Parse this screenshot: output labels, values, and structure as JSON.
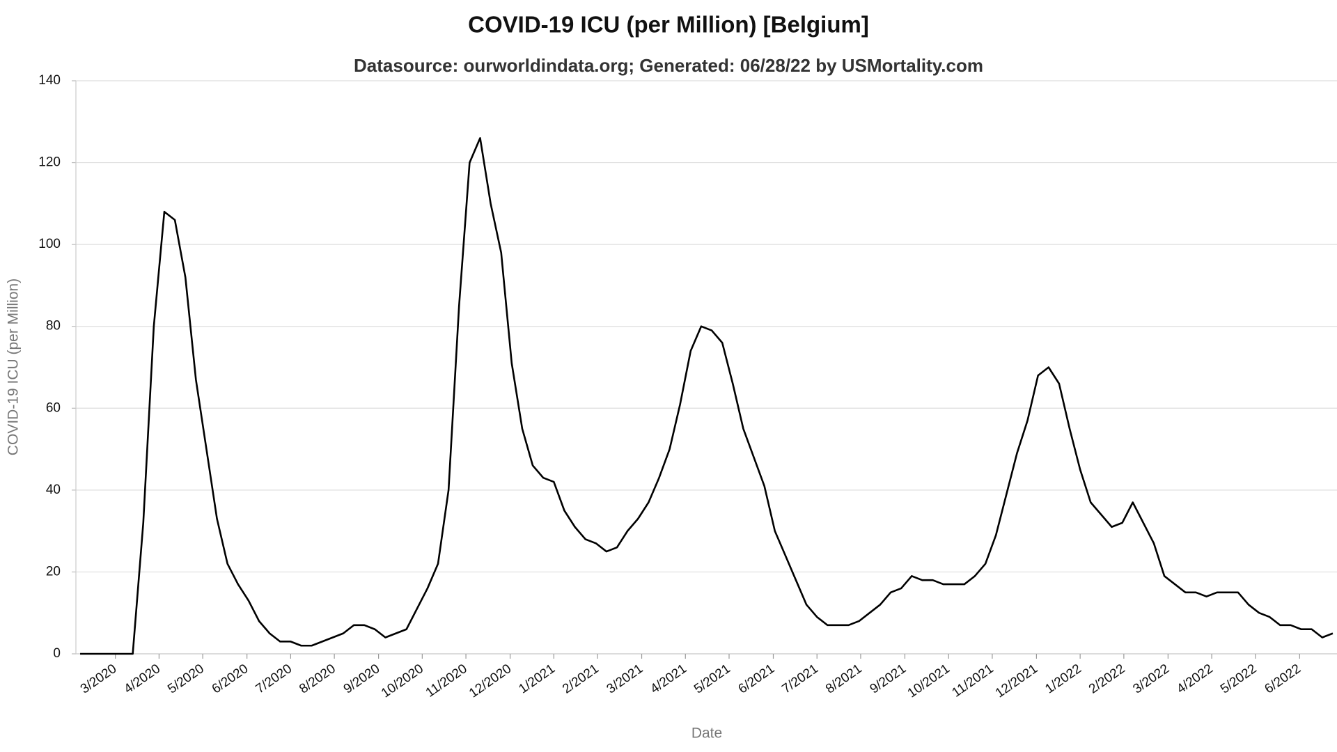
{
  "chart_data": {
    "type": "line",
    "title": "COVID-19 ICU (per Million) [Belgium]",
    "subtitle": "Datasource: ourworldindata.org; Generated: 06/28/22 by USMortality.com",
    "x_label": "Date",
    "y_label": "COVID-19 ICU (per Million)",
    "color": "#000000",
    "grid": true,
    "x": [
      2020.1,
      2020.12,
      2020.14,
      2020.16,
      2020.18,
      2020.2,
      2020.22,
      2020.24,
      2020.26,
      2020.28,
      2020.3,
      2020.32,
      2020.34,
      2020.36,
      2020.38,
      2020.4,
      2020.42,
      2020.44,
      2020.46,
      2020.48,
      2020.5,
      2020.52,
      2020.54,
      2020.56,
      2020.58,
      2020.6,
      2020.62,
      2020.64,
      2020.66,
      2020.68,
      2020.7,
      2020.72,
      2020.74,
      2020.76,
      2020.78,
      2020.8,
      2020.82,
      2020.84,
      2020.86,
      2020.88,
      2020.9,
      2020.92,
      2020.94,
      2020.96,
      2020.98,
      2021.0,
      2021.02,
      2021.04,
      2021.06,
      2021.08,
      2021.1,
      2021.12,
      2021.14,
      2021.16,
      2021.18,
      2021.2,
      2021.22,
      2021.24,
      2021.26,
      2021.28,
      2021.3,
      2021.32,
      2021.34,
      2021.36,
      2021.38,
      2021.4,
      2021.42,
      2021.44,
      2021.46,
      2021.48,
      2021.5,
      2021.52,
      2021.54,
      2021.56,
      2021.58,
      2021.6,
      2021.62,
      2021.64,
      2021.66,
      2021.68,
      2021.7,
      2021.72,
      2021.74,
      2021.76,
      2021.78,
      2021.8,
      2021.82,
      2021.84,
      2021.86,
      2021.88,
      2021.9,
      2021.92,
      2021.94,
      2021.96,
      2021.98,
      2022.0,
      2022.02,
      2022.04,
      2022.06,
      2022.08,
      2022.1,
      2022.12,
      2022.14,
      2022.16,
      2022.18,
      2022.2,
      2022.22,
      2022.24,
      2022.26,
      2022.28,
      2022.3,
      2022.32,
      2022.34,
      2022.36,
      2022.38,
      2022.4,
      2022.42,
      2022.44,
      2022.46,
      2022.48
    ],
    "values": [
      0,
      0,
      0,
      0,
      0,
      0,
      32,
      80,
      108,
      106,
      92,
      67,
      50,
      33,
      22,
      17,
      13,
      8,
      5,
      3,
      3,
      2,
      2,
      3,
      4,
      5,
      7,
      7,
      6,
      4,
      5,
      6,
      11,
      16,
      22,
      40,
      85,
      120,
      126,
      110,
      98,
      71,
      55,
      46,
      43,
      42,
      35,
      31,
      28,
      27,
      25,
      26,
      30,
      33,
      37,
      43,
      50,
      61,
      74,
      80,
      79,
      76,
      66,
      55,
      48,
      41,
      30,
      24,
      18,
      12,
      9,
      7,
      7,
      7,
      8,
      10,
      12,
      15,
      16,
      19,
      18,
      18,
      17,
      17,
      17,
      19,
      22,
      29,
      39,
      49,
      57,
      68,
      70,
      66,
      55,
      45,
      37,
      34,
      31,
      32,
      37,
      32,
      27,
      19,
      17,
      15,
      15,
      14,
      15,
      15,
      15,
      12,
      10,
      9,
      7,
      7,
      6,
      6,
      4,
      5
    ],
    "xlim": [
      2020.092,
      2022.488
    ],
    "ylim": [
      0,
      140
    ],
    "yticks": [
      0,
      20,
      40,
      60,
      80,
      100,
      120,
      140
    ],
    "xticks": [
      {
        "value": 2020.167,
        "label": "3/2020"
      },
      {
        "value": 2020.25,
        "label": "4/2020"
      },
      {
        "value": 2020.333,
        "label": "5/2020"
      },
      {
        "value": 2020.417,
        "label": "6/2020"
      },
      {
        "value": 2020.5,
        "label": "7/2020"
      },
      {
        "value": 2020.583,
        "label": "8/2020"
      },
      {
        "value": 2020.667,
        "label": "9/2020"
      },
      {
        "value": 2020.75,
        "label": "10/2020"
      },
      {
        "value": 2020.833,
        "label": "11/2020"
      },
      {
        "value": 2020.917,
        "label": "12/2020"
      },
      {
        "value": 2021,
        "label": "1/2021"
      },
      {
        "value": 2021.083,
        "label": "2/2021"
      },
      {
        "value": 2021.167,
        "label": "3/2021"
      },
      {
        "value": 2021.25,
        "label": "4/2021"
      },
      {
        "value": 2021.333,
        "label": "5/2021"
      },
      {
        "value": 2021.417,
        "label": "6/2021"
      },
      {
        "value": 2021.5,
        "label": "7/2021"
      },
      {
        "value": 2021.583,
        "label": "8/2021"
      },
      {
        "value": 2021.667,
        "label": "9/2021"
      },
      {
        "value": 2021.75,
        "label": "10/2021"
      },
      {
        "value": 2021.833,
        "label": "11/2021"
      },
      {
        "value": 2021.917,
        "label": "12/2021"
      },
      {
        "value": 2022,
        "label": "1/2022"
      },
      {
        "value": 2022.083,
        "label": "2/2022"
      },
      {
        "value": 2022.167,
        "label": "3/2022"
      },
      {
        "value": 2022.25,
        "label": "4/2022"
      },
      {
        "value": 2022.333,
        "label": "5/2022"
      },
      {
        "value": 2022.417,
        "label": "6/2022"
      }
    ]
  }
}
